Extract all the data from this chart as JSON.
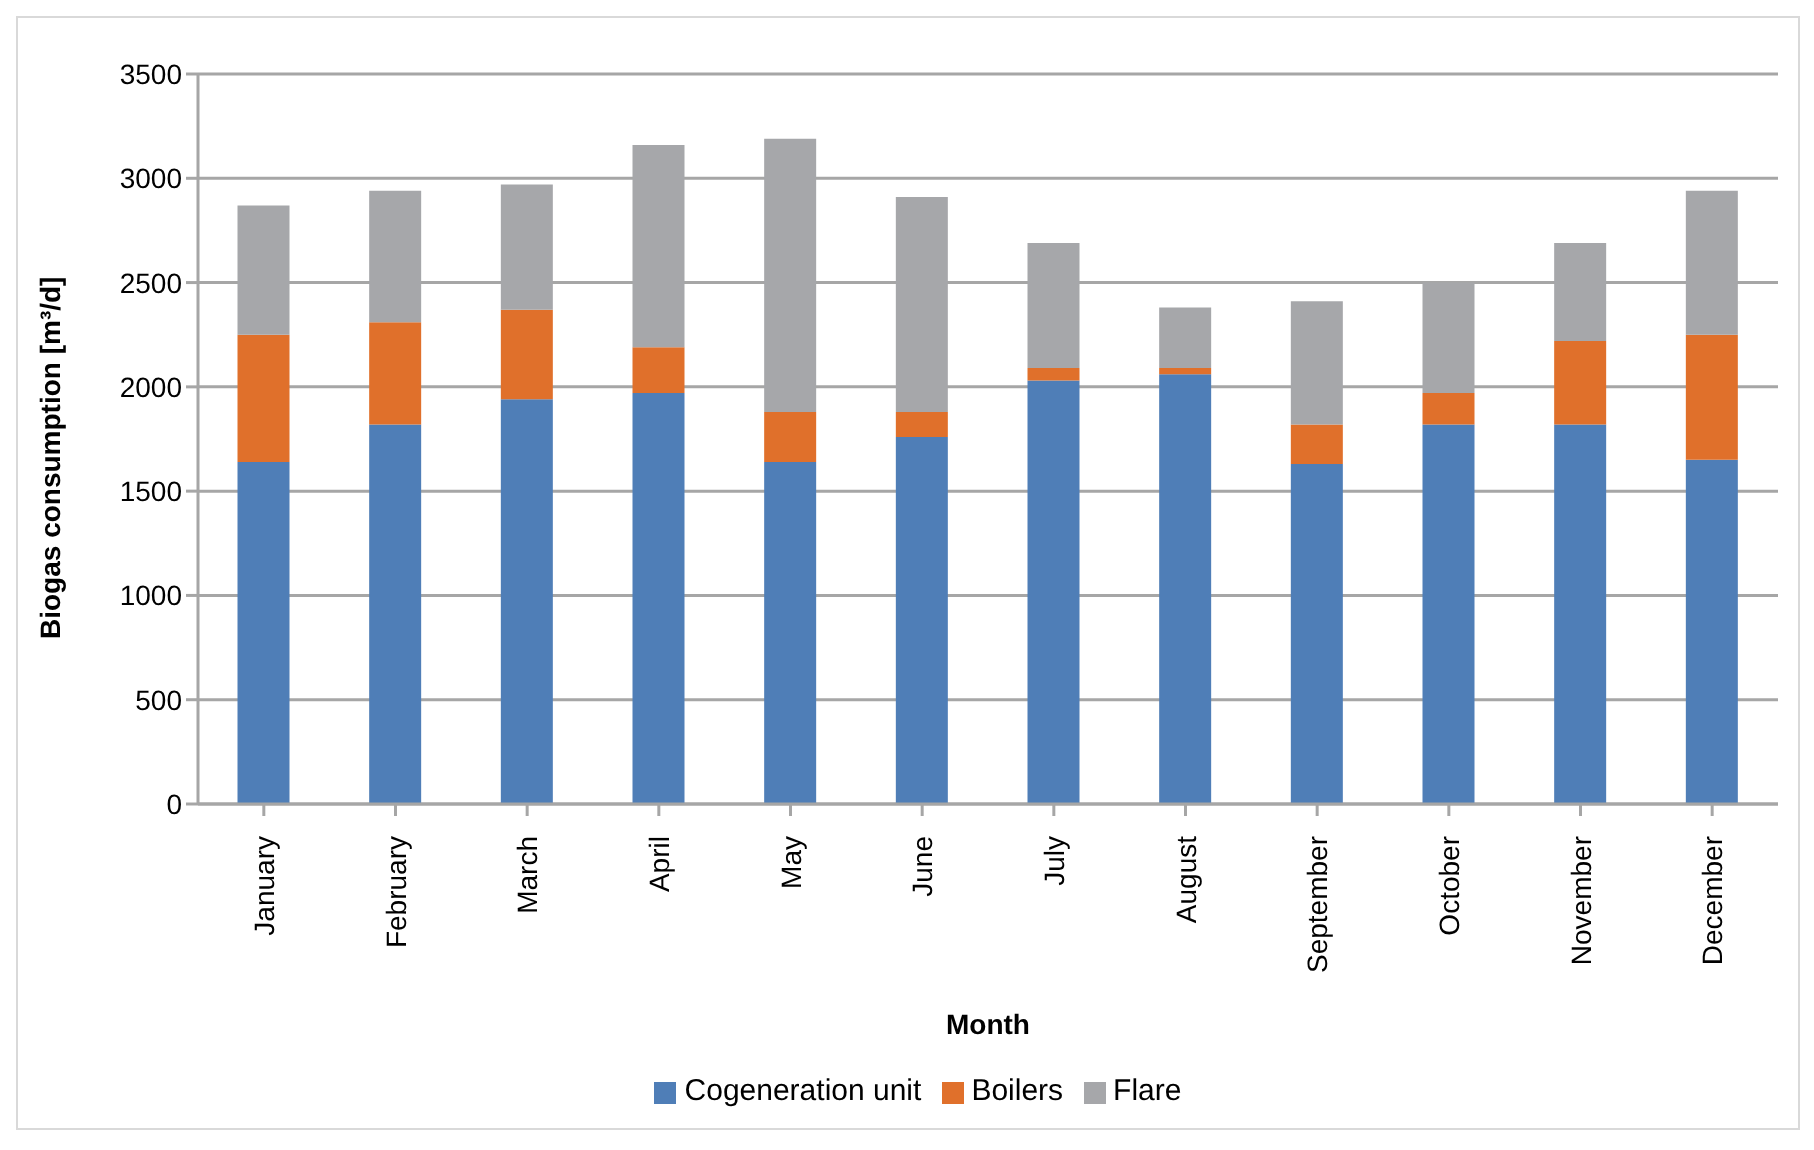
{
  "chart_data": {
    "type": "bar",
    "stacked": true,
    "xlabel": "Month",
    "ylabel": "Biogas consumption [m³/d]",
    "categories": [
      "January",
      "February",
      "March",
      "April",
      "May",
      "June",
      "July",
      "August",
      "September",
      "October",
      "November",
      "December"
    ],
    "series": [
      {
        "name": "Cogeneration unit",
        "color": "#4f7eb7",
        "values": [
          1640,
          1820,
          1940,
          1970,
          1640,
          1760,
          2030,
          2060,
          1630,
          1820,
          1820,
          1650
        ]
      },
      {
        "name": "Boilers",
        "color": "#e0702b",
        "values": [
          610,
          490,
          430,
          220,
          240,
          120,
          60,
          30,
          190,
          150,
          400,
          600
        ]
      },
      {
        "name": "Flare",
        "color": "#a6a7aa",
        "values": [
          620,
          630,
          600,
          970,
          1310,
          1030,
          600,
          290,
          590,
          530,
          470,
          690
        ]
      }
    ],
    "ylim": [
      0,
      3500
    ],
    "yticks": [
      0,
      500,
      1000,
      1500,
      2000,
      2500,
      3000,
      3500
    ],
    "grid": "y",
    "legend": "bottom"
  }
}
